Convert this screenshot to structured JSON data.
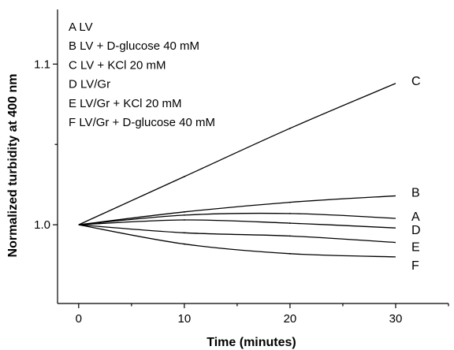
{
  "chart_data": {
    "type": "line",
    "xlabel": "Time (minutes)",
    "ylabel": "Normalized  turbidity at 400 nm",
    "xlim": [
      -2,
      35
    ],
    "ylim": [
      0.951,
      1.134
    ],
    "x_ticks": [
      0,
      10,
      20,
      30
    ],
    "y_ticks": [
      1.0,
      1.1
    ],
    "y_tick_labels": [
      "1.0",
      "1.1"
    ],
    "grid": false,
    "legend": {
      "placement": "top-left",
      "entries": [
        "A LV",
        "B LV + D-glucose 40 mM",
        "C LV + KCl 20 mM",
        "D LV/Gr",
        "E LV/Gr + KCl 20 mM",
        "F LV/Gr + D-glucose 40 mM"
      ]
    },
    "x": [
      0,
      10,
      20,
      30
    ],
    "series": [
      {
        "name": "A",
        "values": [
          1.0,
          1.006,
          1.007,
          1.004
        ]
      },
      {
        "name": "B",
        "values": [
          1.0,
          1.008,
          1.014,
          1.018
        ]
      },
      {
        "name": "C",
        "values": [
          1.0,
          1.03,
          1.06,
          1.088
        ]
      },
      {
        "name": "D",
        "values": [
          1.0,
          1.003,
          1.001,
          0.998
        ]
      },
      {
        "name": "E",
        "values": [
          1.0,
          0.995,
          0.993,
          0.989
        ]
      },
      {
        "name": "F",
        "values": [
          1.0,
          0.988,
          0.982,
          0.98
        ]
      }
    ]
  }
}
